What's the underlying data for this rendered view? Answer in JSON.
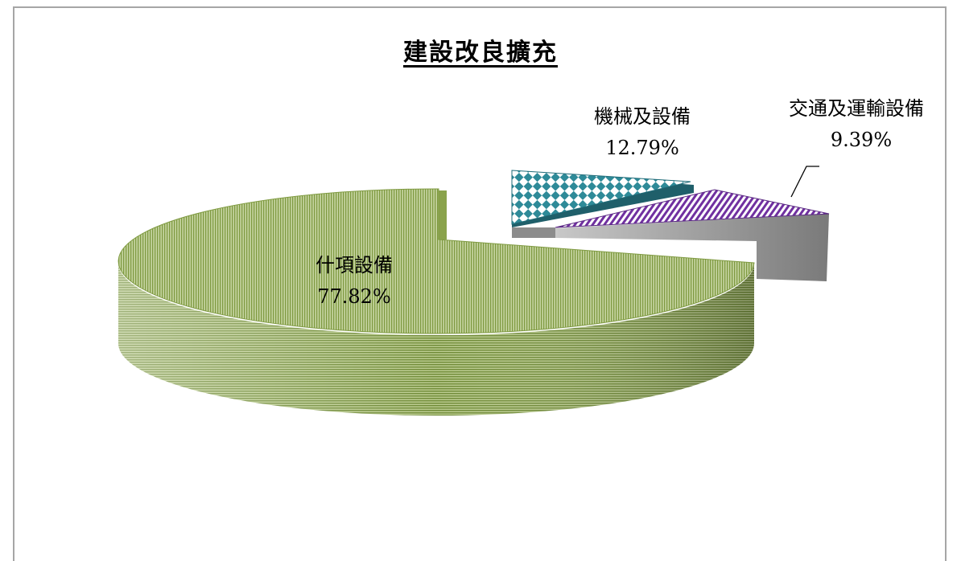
{
  "chart_data": {
    "type": "pie",
    "title": "建設改良擴充",
    "slices": [
      {
        "label": "什項設備",
        "value": 77.82,
        "display": "77.82%",
        "pattern": "horizontal-stripes",
        "color": "#7f9a41"
      },
      {
        "label": "機械及設備",
        "value": 12.79,
        "display": "12.79%",
        "pattern": "diamond-checker",
        "color": "#31859c"
      },
      {
        "label": "交通及運輸設備",
        "value": 9.39,
        "display": "9.39%",
        "pattern": "diagonal-stripes",
        "color": "#7030a0"
      }
    ],
    "exploded": [
      "機械及設備",
      "交通及運輸設備"
    ],
    "style": "3d-pie"
  }
}
